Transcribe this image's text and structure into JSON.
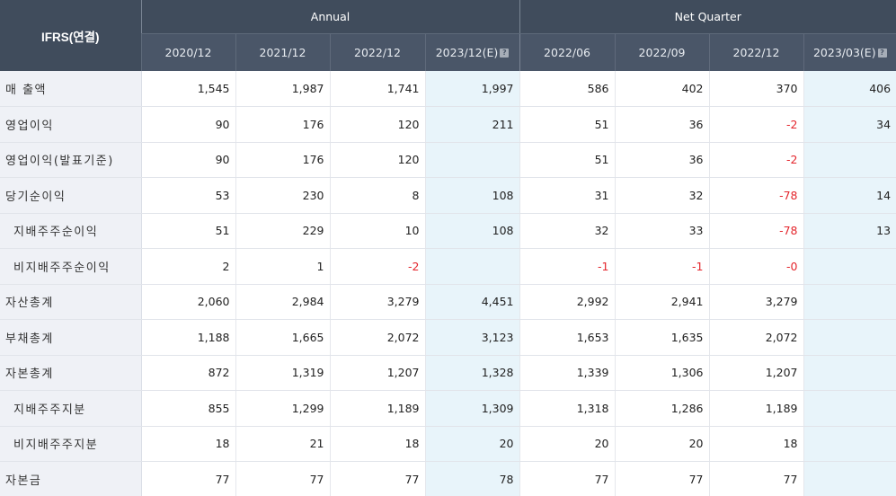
{
  "table": {
    "corner_label": "IFRS(연결)",
    "groups": [
      {
        "label": "Annual"
      },
      {
        "label": "Net Quarter"
      }
    ],
    "periods": [
      {
        "label": "2020/12",
        "estimate": false
      },
      {
        "label": "2021/12",
        "estimate": false
      },
      {
        "label": "2022/12",
        "estimate": false
      },
      {
        "label": "2023/12(E)",
        "estimate": true
      },
      {
        "label": "2022/06",
        "estimate": false
      },
      {
        "label": "2022/09",
        "estimate": false
      },
      {
        "label": "2022/12",
        "estimate": false
      },
      {
        "label": "2023/03(E)",
        "estimate": true
      }
    ],
    "estimate_icon": "help-icon",
    "rows": [
      {
        "label": "매 출액",
        "sub_item": false,
        "values": [
          "1,545",
          "1,987",
          "1,741",
          "1,997",
          "586",
          "402",
          "370",
          "406"
        ]
      },
      {
        "label": "영업이익",
        "sub_item": false,
        "values": [
          "90",
          "176",
          "120",
          "211",
          "51",
          "36",
          "-2",
          "34"
        ]
      },
      {
        "label": "영업이익(발표기준)",
        "sub_item": false,
        "values": [
          "90",
          "176",
          "120",
          "",
          "51",
          "36",
          "-2",
          ""
        ]
      },
      {
        "label": "당기순이익",
        "sub_item": false,
        "values": [
          "53",
          "230",
          "8",
          "108",
          "31",
          "32",
          "-78",
          "14"
        ]
      },
      {
        "label": "지배주주순이익",
        "sub_item": true,
        "values": [
          "51",
          "229",
          "10",
          "108",
          "32",
          "33",
          "-78",
          "13"
        ]
      },
      {
        "label": "비지배주주순이익",
        "sub_item": true,
        "values": [
          "2",
          "1",
          "-2",
          "",
          "-1",
          "-1",
          "-0",
          ""
        ]
      },
      {
        "label": "자산총계",
        "sub_item": false,
        "values": [
          "2,060",
          "2,984",
          "3,279",
          "4,451",
          "2,992",
          "2,941",
          "3,279",
          ""
        ]
      },
      {
        "label": "부채총계",
        "sub_item": false,
        "values": [
          "1,188",
          "1,665",
          "2,072",
          "3,123",
          "1,653",
          "1,635",
          "2,072",
          ""
        ]
      },
      {
        "label": "자본총계",
        "sub_item": false,
        "values": [
          "872",
          "1,319",
          "1,207",
          "1,328",
          "1,339",
          "1,306",
          "1,207",
          ""
        ]
      },
      {
        "label": "지배주주지분",
        "sub_item": true,
        "values": [
          "855",
          "1,299",
          "1,189",
          "1,309",
          "1,318",
          "1,286",
          "1,189",
          ""
        ]
      },
      {
        "label": "비지배주주지분",
        "sub_item": true,
        "values": [
          "18",
          "21",
          "18",
          "20",
          "20",
          "20",
          "18",
          ""
        ]
      },
      {
        "label": "자본금",
        "sub_item": false,
        "values": [
          "77",
          "77",
          "77",
          "78",
          "77",
          "77",
          "77",
          ""
        ]
      }
    ]
  },
  "colors": {
    "header_bg": "#404c5c",
    "subheader_bg": "#4a5668",
    "label_column_bg": "#eff1f6",
    "estimate_bg": "#e8f4fa",
    "negative_text": "#e4262d"
  }
}
